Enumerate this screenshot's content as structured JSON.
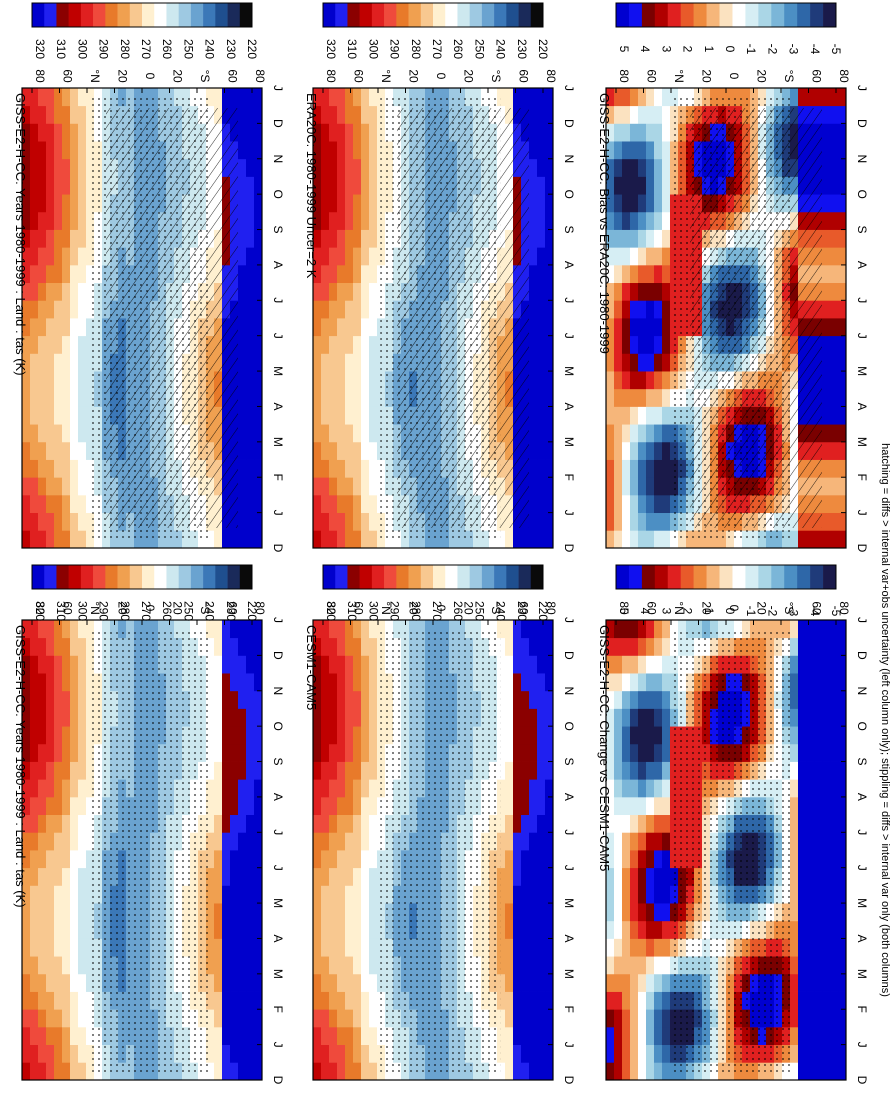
{
  "figure_caption": "hatching = diffs > internal var+obs uncertainty (left column only); stippling = diffs > internal var only (both columns)",
  "colors": {
    "temperature_scale": [
      "#0a0a0a",
      "#1a2a5a",
      "#1f4f8f",
      "#3b78b8",
      "#6aa3d0",
      "#9ec9e2",
      "#cde8ef",
      "#ffffff",
      "#fff0d0",
      "#f8c890",
      "#f0a050",
      "#e87a2a",
      "#ef4a3c",
      "#e02020",
      "#c00000",
      "#8b0000",
      "#2020f0",
      "#0000cc"
    ],
    "difference_scale": [
      "#1a1a4a",
      "#1f3b7a",
      "#2e67a8",
      "#4c8fc4",
      "#7bb6d8",
      "#aad6e6",
      "#d6eef4",
      "#ffffff",
      "#fbe2c0",
      "#f6b67a",
      "#ee8a3e",
      "#e85a2a",
      "#e02020",
      "#b00000",
      "#7a0000",
      "#1010f0",
      "#0000d0"
    ]
  },
  "chart_data": [
    {
      "type": "heatmap",
      "panel": "top-left",
      "title": "GISS-E2-H-CC: Years 1980-1999 : Land : tas (K)",
      "x_months": [
        "D",
        "J",
        "F",
        "M",
        "A",
        "M",
        "J",
        "J",
        "A",
        "S",
        "O",
        "N",
        "D",
        "J"
      ],
      "y_ticks": [
        "80",
        "60",
        "°N",
        "20",
        "0",
        "20",
        "°S",
        "60",
        "80"
      ],
      "colorbar_ticks": [
        "320",
        "310",
        "300",
        "290",
        "280",
        "270",
        "260",
        "250",
        "240",
        "230",
        "220"
      ],
      "value_range": [
        215,
        325
      ],
      "overlay": "hatching+stippling"
    },
    {
      "type": "heatmap",
      "panel": "top-right",
      "title": "GISS-E2-H-CC: Years 1980-1999 : Land : tas (K)",
      "x_months": [
        "D",
        "J",
        "F",
        "M",
        "A",
        "M",
        "J",
        "J",
        "A",
        "S",
        "O",
        "N",
        "D",
        "J"
      ],
      "y_ticks": [
        "80",
        "60",
        "°N",
        "20",
        "0",
        "20",
        "°S",
        "60",
        "80"
      ],
      "colorbar_ticks": [
        "320",
        "310",
        "300",
        "290",
        "280",
        "270",
        "260",
        "250",
        "240",
        "230",
        "220"
      ],
      "value_range": [
        215,
        325
      ],
      "overlay": "stippling"
    },
    {
      "type": "heatmap",
      "panel": "middle-left",
      "title": "ERA20C: 1980-1999 Uncer=2 K",
      "x_months": [
        "D",
        "J",
        "F",
        "M",
        "A",
        "M",
        "J",
        "J",
        "A",
        "S",
        "O",
        "N",
        "D",
        "J"
      ],
      "y_ticks": [
        "80",
        "60",
        "°N",
        "20",
        "0",
        "20",
        "°S",
        "60",
        "80"
      ],
      "colorbar_ticks": [
        "320",
        "310",
        "300",
        "290",
        "280",
        "270",
        "260",
        "250",
        "240",
        "230",
        "220"
      ],
      "value_range": [
        215,
        325
      ],
      "overlay": "hatching+stippling"
    },
    {
      "type": "heatmap",
      "panel": "middle-right",
      "title": "CESM1-CAM5",
      "x_months": [
        "D",
        "J",
        "F",
        "M",
        "A",
        "M",
        "J",
        "J",
        "A",
        "S",
        "O",
        "N",
        "D",
        "J"
      ],
      "y_ticks": [
        "80",
        "60",
        "°N",
        "20",
        "0",
        "20",
        "°S",
        "60",
        "80"
      ],
      "colorbar_ticks": [
        "320",
        "310",
        "300",
        "290",
        "280",
        "270",
        "260",
        "250",
        "240",
        "230",
        "220"
      ],
      "value_range": [
        215,
        325
      ],
      "overlay": "stippling"
    },
    {
      "type": "heatmap",
      "panel": "bottom-left",
      "title": "GISS-E2-H-CC: Bias vs ERA20C: 1980-1999",
      "x_months": [
        "D",
        "J",
        "F",
        "M",
        "A",
        "M",
        "J",
        "J",
        "A",
        "S",
        "O",
        "N",
        "D",
        "J"
      ],
      "y_ticks": [
        "80",
        "60",
        "°N",
        "20",
        "0",
        "20",
        "°S",
        "60",
        "80"
      ],
      "colorbar_ticks": [
        "5",
        "4",
        "3",
        "2",
        "1",
        "0",
        "-1",
        "-2",
        "-3",
        "-4",
        "-5"
      ],
      "value_range": [
        -6,
        6
      ],
      "overlay": "hatching+stippling"
    },
    {
      "type": "heatmap",
      "panel": "bottom-right",
      "title": "GISS-E2-H-CC: Change vs CESM1-CAM5",
      "x_months": [
        "D",
        "J",
        "F",
        "M",
        "A",
        "M",
        "J",
        "J",
        "A",
        "S",
        "O",
        "N",
        "D",
        "J"
      ],
      "y_ticks": [
        "80",
        "60",
        "°N",
        "20",
        "0",
        "20",
        "°S",
        "60",
        "80"
      ],
      "colorbar_ticks": [
        "5",
        "4",
        "3",
        "2",
        "1",
        "0",
        "-1",
        "-2",
        "-3",
        "-4",
        "-5"
      ],
      "value_range": [
        -6,
        6
      ],
      "overlay": "stippling"
    }
  ]
}
